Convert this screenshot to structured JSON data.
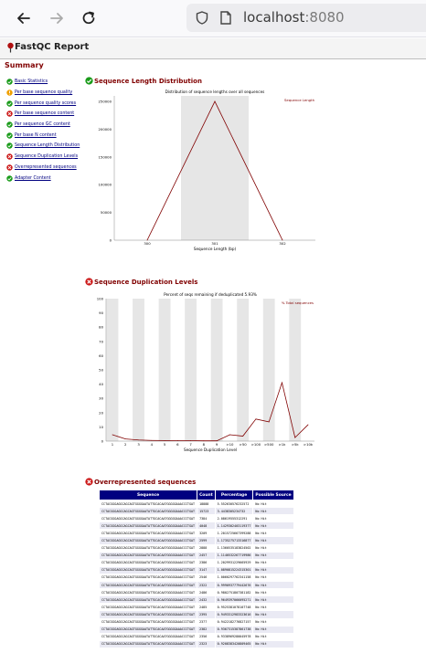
{
  "browser": {
    "url_host": "localhost",
    "url_port": ":8080"
  },
  "report": {
    "title": "FastQC Report"
  },
  "summary": {
    "title": "Summary",
    "items": [
      {
        "label": "Basic Statistics",
        "status": "pass"
      },
      {
        "label": "Per base sequence quality",
        "status": "warn"
      },
      {
        "label": "Per sequence quality scores",
        "status": "pass"
      },
      {
        "label": "Per base sequence content",
        "status": "fail"
      },
      {
        "label": "Per sequence GC content",
        "status": "pass"
      },
      {
        "label": "Per base N content",
        "status": "pass"
      },
      {
        "label": "Sequence Length Distribution",
        "status": "pass"
      },
      {
        "label": "Sequence Duplication Levels",
        "status": "fail"
      },
      {
        "label": "Overrepresented sequences",
        "status": "fail"
      },
      {
        "label": "Adapter Content",
        "status": "pass"
      }
    ]
  },
  "modules": {
    "length_title": "Sequence Length Distribution",
    "dup_title": "Sequence Duplication Levels",
    "over_title": "Overrepresented sequences"
  },
  "colors": {
    "pass": "#1a9b1a",
    "warn": "#f0a000",
    "fail": "#cc1a1a",
    "line": "#800000",
    "table_header": "#000080"
  },
  "chart_data": [
    {
      "type": "line",
      "title": "Distribution of sequence lengths over all sequences",
      "xlabel": "Sequence Length (bp)",
      "ylabel": "",
      "categories": [
        "300",
        "301",
        "302"
      ],
      "series": [
        {
          "name": "Sequence Length",
          "values": [
            0,
            250000,
            0
          ]
        }
      ],
      "y_ticks": [
        "0",
        "50000",
        "100000",
        "150000",
        "200000",
        "250000"
      ],
      "ylim": [
        0,
        260000
      ],
      "highlight_band": "301",
      "legend": "top-right"
    },
    {
      "type": "line",
      "title": "Percent of seqs remaining if deduplicated 5.93%",
      "xlabel": "Sequence Duplication Level",
      "ylabel": "",
      "categories": [
        "1",
        "2",
        "3",
        "4",
        "5",
        "6",
        "7",
        "8",
        "9",
        ">10",
        ">50",
        ">100",
        ">500",
        ">1k",
        ">5k",
        ">10k"
      ],
      "series": [
        {
          "name": "% Total sequences",
          "values": [
            4.5,
            1.5,
            0.8,
            0.5,
            0.4,
            0.3,
            0.3,
            0.2,
            0.2,
            4.5,
            3.5,
            15.5,
            13.5,
            41,
            2.5,
            11.5
          ]
        }
      ],
      "y_ticks": [
        "0",
        "10",
        "20",
        "30",
        "40",
        "50",
        "60",
        "70",
        "80",
        "90",
        "100"
      ],
      "ylim": [
        0,
        100
      ],
      "legend": "top-right"
    }
  ],
  "over_table": {
    "headers": [
      "Sequence",
      "Count",
      "Percentage",
      "Possible Source"
    ],
    "rows": [
      [
        "CCTACGGGAGGCAGCAGTGGGGAATATTGCACAATGGGGGAAACCCTGAT",
        "18888",
        "5.552630576232572",
        "No Hit"
      ],
      [
        "CCTACGGGAGGCAGCAGTGGGGAATATTGCACAATGGGGGAAACCCTGAT",
        "15723",
        "3.4438305234732",
        "No Hit"
      ],
      [
        "CCTACGGGAGGCAGCAGTGGGGAATATTGCACAATGGGGGAAACCCTGAT",
        "7384",
        "2.08619555312291",
        "No Hit"
      ],
      [
        "CCTACGGGAGGCAGCAGTGGGGAATATTGCACAATGGGGGAAACCCTGAT",
        "4048",
        "1.1429302403119377",
        "No Hit"
      ],
      [
        "CCTACGGGAGGCAGCAGTGGGGAATATTGCACAATGGGGGAAACCCTGAT",
        "3209",
        "1.2015725667399288",
        "No Hit"
      ],
      [
        "CCTACGGGAGGCAGCAGTGGGGAATATTGCACAATGGGGGAAACCCTGAT",
        "2599",
        "1.1735275713316877",
        "No Hit"
      ],
      [
        "CCTACGGGAGGCAGCAGTGGGGAATATTGCACAATGGGGGAAACCCTGAT",
        "2888",
        "1.1360535183824502",
        "No Hit"
      ],
      [
        "CCTACGGGAGGCAGCAGTGGGGAATATTGCACAATGGGGGAAACCCTGAT",
        "2457",
        "1.1140532267719986",
        "No Hit"
      ],
      [
        "CCTACGGGAGGCAGCAGTGGGGAATATTGCACAATGGGGGAAACCCTGAT",
        "2386",
        "1.2029931229665929",
        "No Hit"
      ],
      [
        "CCTACGGGAGGCAGCAGTGGGGAATATTGCACAATGGGGGAAACCCTGAT",
        "3147",
        "1.0890815224315301",
        "No Hit"
      ],
      [
        "CCTACGGGAGGCAGCAGTGGGGAATATTGCACAATGGGGGAAACCCTGAT",
        "2546",
        "1.0060297762341158",
        "No Hit"
      ],
      [
        "CCTACGGGAGGCAGCAGTGGGGAATATTGCACAATGGGGGAAACCCTGAT",
        "2322",
        "0.9990937779442676",
        "No Hit"
      ],
      [
        "CCTACGGGAGGCAGCAGTGGGGAATATTGCACAATGGGGGAAACCCTGAT",
        "2486",
        "0.9802751807381182",
        "No Hit"
      ],
      [
        "CCTACGGGAGGCAGCAGTGGGGAATATTGCACAATGGGGGAAACCCTGAT",
        "2432",
        "0.9649397066095271",
        "No Hit"
      ],
      [
        "CCTACGGGAGGCAGCAGTGGGGAATATTGCACAATGGGGGAAACCCTGAT",
        "2485",
        "0.9525381078107748",
        "No Hit"
      ],
      [
        "CCTACGGGAGGCAGCAGTGGGGAATATTGCACAATGGGGGAAACCCTGAT",
        "2395",
        "0.9493312983323616",
        "No Hit"
      ],
      [
        "CCTACGGGAGGCAGCAGTGGGGAATATTGCACAATGGGGGAAACCCTGAT",
        "2377",
        "0.9422182776827157",
        "No Hit"
      ],
      [
        "CCTACGGGAGGCAGCAGTGGGGAATATTGCACAATGGGGGAAACCCTGAT",
        "2382",
        "0.9367315387861738",
        "No Hit"
      ],
      [
        "CCTACGGGAGGCAGCAGTGGGGAATATTGCACAATGGGGGAAACCCTGAT",
        "2356",
        "0.9338969280045978",
        "No Hit"
      ],
      [
        "CCTACGGGAGGCAGCAGTGGGGAATATTGCACAATGGGGGAAACCCTGAT",
        "2323",
        "0.9208383420809465",
        "No Hit"
      ]
    ]
  }
}
